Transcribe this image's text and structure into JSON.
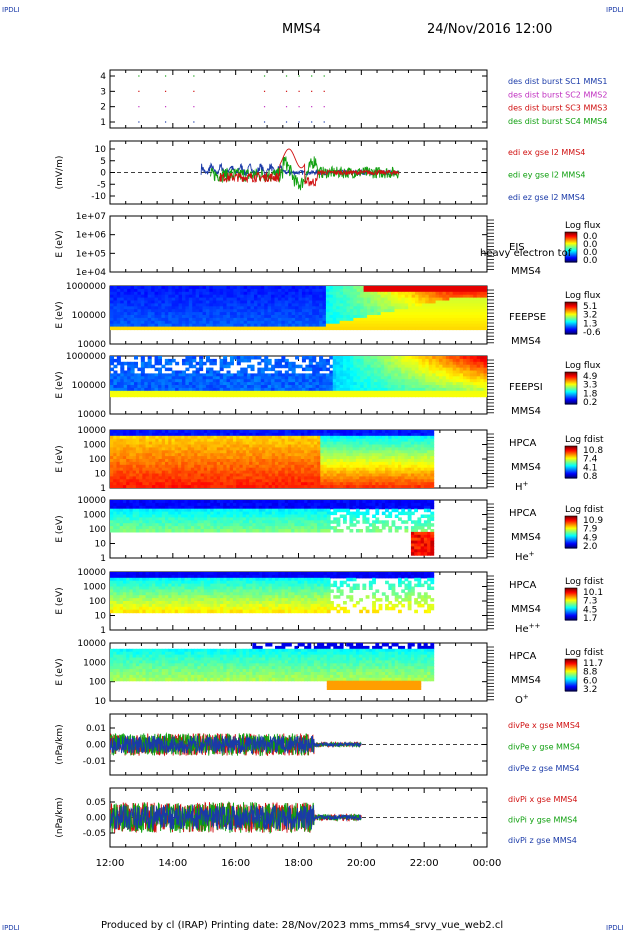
{
  "header": {
    "corner_label": "IPDLI",
    "spacecraft": "MMS4",
    "datetime": "24/Nov/2016 12:00"
  },
  "footer": {
    "text": "Produced by cl (IRAP)   Printing date: 28/Nov/2023   mms_mms4_srvy_vue_web2.cl"
  },
  "chart_data": {
    "type": "timeseries-stack",
    "x_ticks": [
      "12:00",
      "14:00",
      "16:00",
      "18:00",
      "20:00",
      "22:00",
      "00:00"
    ],
    "panels": [
      {
        "id": "burst",
        "ylabel": "",
        "yticks": [
          "4",
          "3",
          "2",
          "1"
        ],
        "legend": [
          {
            "text": "des dist burst SC1 MMS1",
            "color": "#1a3aa8"
          },
          {
            "text": "des dist burst SC2 MMS2",
            "color": "#c030c0"
          },
          {
            "text": "des dist burst SC3 MMS3",
            "color": "#d01010"
          },
          {
            "text": "des dist burst SC4 MMS4",
            "color": "#10a010"
          }
        ]
      },
      {
        "id": "efield",
        "ylabel": "(mV/m)",
        "yticks": [
          "10",
          "5",
          "0",
          "-5",
          "-10"
        ],
        "legend": [
          {
            "text": "edi ex gse l2 MMS4",
            "color": "#d01010"
          },
          {
            "text": "edi ey gse l2 MMS4",
            "color": "#10a010"
          },
          {
            "text": "edi ez gse l2 MMS4",
            "color": "#1a3aa8"
          }
        ]
      },
      {
        "id": "eis",
        "ylabel": "E (eV)",
        "yticks": [
          "1e+07",
          "1e+06",
          "1e+05",
          "1e+04"
        ],
        "instrument": "EIS",
        "overlay": "heavy electron tof",
        "sc": "MMS4",
        "cbar_title": "Log flux",
        "cbar_ticks": [
          "0.0",
          "0.0",
          "0.0",
          "0.0"
        ]
      },
      {
        "id": "feepse",
        "ylabel": "E (eV)",
        "yticks": [
          "1000000",
          "100000",
          "10000"
        ],
        "instrument": "FEEPSE",
        "sc": "MMS4",
        "cbar_title": "Log flux",
        "cbar_ticks": [
          "5.1",
          "3.2",
          "1.3",
          "-0.6"
        ]
      },
      {
        "id": "feepsi",
        "ylabel": "E (eV)",
        "yticks": [
          "1000000",
          "100000",
          "10000"
        ],
        "instrument": "FEEPSI",
        "sc": "MMS4",
        "cbar_title": "Log flux",
        "cbar_ticks": [
          "4.9",
          "3.3",
          "1.8",
          "0.2"
        ]
      },
      {
        "id": "hpca_h",
        "ylabel": "E (eV)",
        "yticks": [
          "10000",
          "1000",
          "100",
          "10",
          "1"
        ],
        "instrument": "HPCA",
        "sc": "MMS4",
        "species": "H",
        "species_sup": "+",
        "cbar_title": "Log fdist",
        "cbar_ticks": [
          "10.8",
          "7.4",
          "4.1",
          "0.8"
        ]
      },
      {
        "id": "hpca_he",
        "ylabel": "E (eV)",
        "yticks": [
          "10000",
          "1000",
          "100",
          "10",
          "1"
        ],
        "instrument": "HPCA",
        "sc": "MMS4",
        "species": "He",
        "species_sup": "+",
        "cbar_title": "Log fdist",
        "cbar_ticks": [
          "10.9",
          "7.9",
          "4.9",
          "2.0"
        ]
      },
      {
        "id": "hpca_hepp",
        "ylabel": "E (eV)",
        "yticks": [
          "10000",
          "1000",
          "100",
          "10",
          "1"
        ],
        "instrument": "HPCA",
        "sc": "MMS4",
        "species": "He",
        "species_sup": "++",
        "cbar_title": "Log fdist",
        "cbar_ticks": [
          "10.1",
          "7.3",
          "4.5",
          "1.7"
        ]
      },
      {
        "id": "hpca_o",
        "ylabel": "E (eV)",
        "yticks": [
          "10000",
          "1000",
          "100",
          "10"
        ],
        "instrument": "HPCA",
        "sc": "MMS4",
        "species": "O",
        "species_sup": "+",
        "cbar_title": "Log fdist",
        "cbar_ticks": [
          "11.7",
          "8.8",
          "6.0",
          "3.2"
        ]
      },
      {
        "id": "divpe",
        "ylabel": "(nPa/km)",
        "yticks": [
          "0.01",
          "0.00",
          "-0.01"
        ],
        "legend": [
          {
            "text": "divPe x gse MMS4",
            "color": "#d01010"
          },
          {
            "text": "divPe y gse MMS4",
            "color": "#10a010"
          },
          {
            "text": "divPe z gse MMS4",
            "color": "#1a3aa8"
          }
        ]
      },
      {
        "id": "divpi",
        "ylabel": "(nPa/km)",
        "yticks": [
          "0.05",
          "0.00",
          "-0.05"
        ],
        "legend": [
          {
            "text": "divPi x gse MMS4",
            "color": "#d01010"
          },
          {
            "text": "divPi y gse MMS4",
            "color": "#10a010"
          },
          {
            "text": "divPi z gse MMS4",
            "color": "#1a3aa8"
          }
        ]
      }
    ]
  }
}
